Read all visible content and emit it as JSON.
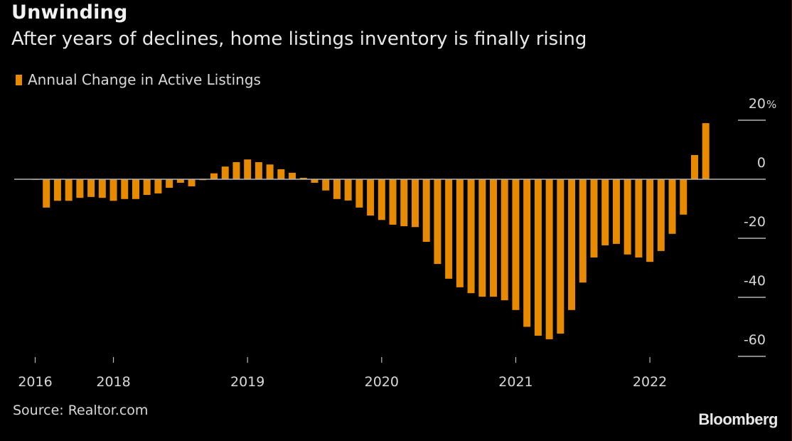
{
  "header": {
    "title": "Unwinding",
    "subtitle": "After years of declines, home listings inventory is finally rising"
  },
  "legend": {
    "label": "Annual Change in Active Listings",
    "color": "#E88A00"
  },
  "footer": {
    "source": "Source: Realtor.com",
    "brand": "Bloomberg"
  },
  "colors": {
    "background": "#000000",
    "bar": "#E88A00",
    "zero_line": "#b4b4b4",
    "text": "#d8d8d8"
  },
  "chart_data": {
    "type": "bar",
    "title": "Unwinding",
    "subtitle": "After years of declines, home listings inventory is finally rising",
    "xlabel": "",
    "ylabel": "",
    "legend": [
      "Annual Change in Active Listings"
    ],
    "legend_position": "top-left",
    "y_axis_position": "right",
    "ylim": [
      -60,
      20
    ],
    "y_ticks": [
      20,
      0,
      -20,
      -40,
      -60
    ],
    "y_tick_labels": [
      "20%",
      "0",
      "-20",
      "-40",
      "-60"
    ],
    "x_tick_labels": [
      {
        "label": "2016",
        "bar_index": 0
      },
      {
        "label": "2018",
        "bar_index": 7
      },
      {
        "label": "2019",
        "bar_index": 19
      },
      {
        "label": "2020",
        "bar_index": 31
      },
      {
        "label": "2021",
        "bar_index": 43
      },
      {
        "label": "2022",
        "bar_index": 55
      }
    ],
    "grid": false,
    "series": [
      {
        "name": "Annual Change in Active Listings",
        "values": [
          -0.2,
          -9.6,
          -7.3,
          -7.3,
          -6.3,
          -6.0,
          -6.3,
          -7.3,
          -6.7,
          -6.7,
          -5.3,
          -4.8,
          -2.9,
          -1.2,
          -2.4,
          -0.3,
          2.0,
          4.3,
          5.8,
          6.7,
          5.8,
          5.0,
          3.4,
          2.2,
          0.5,
          -1.2,
          -3.8,
          -6.7,
          -7.2,
          -9.6,
          -12.3,
          -13.8,
          -15.4,
          -15.9,
          -16.2,
          -21.2,
          -28.7,
          -33.7,
          -36.6,
          -38.6,
          -39.8,
          -39.8,
          -41.0,
          -44.3,
          -50.0,
          -53.0,
          -54.2,
          -52.3,
          -44.3,
          -35.0,
          -26.5,
          -22.4,
          -21.9,
          -25.5,
          -26.5,
          -28.0,
          -24.3,
          -18.5,
          -12.0,
          8.2,
          19.0
        ]
      }
    ]
  }
}
